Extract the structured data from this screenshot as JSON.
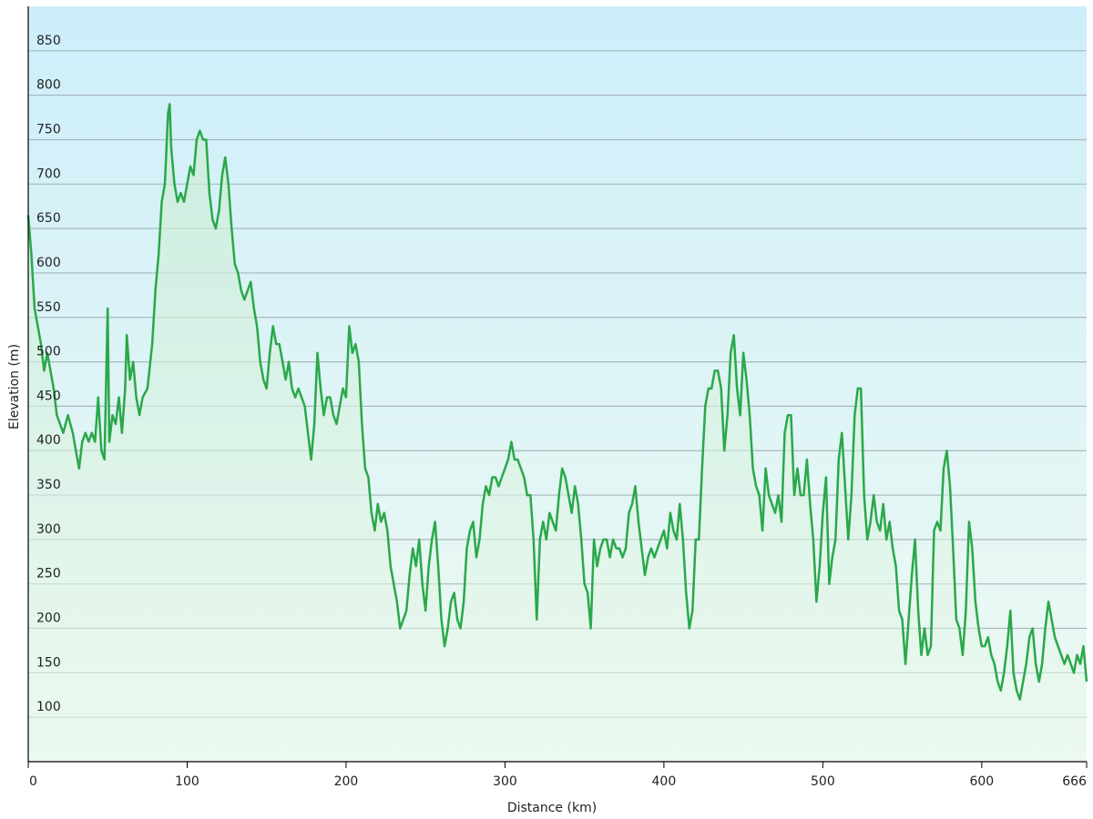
{
  "chart_data": {
    "type": "area-line",
    "x_label": "Distance  (km)",
    "y_label": "Elevation (m)",
    "color": "#2aa84a",
    "grid": true,
    "xlim": [
      0,
      666
    ],
    "ylim": [
      50,
      900
    ],
    "xticks": [
      0,
      100,
      200,
      300,
      400,
      500,
      600,
      666
    ],
    "yticks": [
      100,
      150,
      200,
      250,
      300,
      350,
      400,
      450,
      500,
      550,
      600,
      650,
      700,
      750,
      800,
      850
    ],
    "x": [
      0,
      2,
      4,
      6,
      8,
      10,
      12,
      14,
      16,
      18,
      20,
      22,
      25,
      28,
      30,
      32,
      34,
      36,
      38,
      40,
      42,
      44,
      46,
      48,
      50,
      51,
      53,
      55,
      57,
      59,
      61,
      62,
      64,
      66,
      68,
      70,
      72,
      75,
      78,
      80,
      82,
      84,
      86,
      88,
      89,
      90,
      92,
      94,
      96,
      98,
      100,
      102,
      104,
      106,
      108,
      110,
      112,
      114,
      116,
      118,
      120,
      122,
      124,
      126,
      128,
      130,
      132,
      134,
      136,
      138,
      140,
      142,
      144,
      146,
      148,
      150,
      152,
      154,
      156,
      158,
      160,
      162,
      164,
      166,
      168,
      170,
      172,
      174,
      176,
      178,
      180,
      182,
      184,
      186,
      188,
      190,
      192,
      194,
      196,
      198,
      200,
      202,
      204,
      206,
      208,
      210,
      212,
      214,
      216,
      218,
      220,
      222,
      224,
      226,
      228,
      230,
      232,
      234,
      236,
      238,
      240,
      242,
      244,
      246,
      248,
      250,
      252,
      254,
      256,
      258,
      260,
      262,
      264,
      266,
      268,
      270,
      272,
      274,
      276,
      278,
      280,
      282,
      284,
      286,
      288,
      290,
      292,
      294,
      296,
      298,
      300,
      302,
      304,
      306,
      308,
      310,
      312,
      314,
      316,
      318,
      320,
      322,
      324,
      326,
      328,
      330,
      332,
      334,
      336,
      338,
      340,
      342,
      344,
      346,
      348,
      350,
      352,
      354,
      356,
      358,
      360,
      362,
      364,
      366,
      368,
      370,
      372,
      374,
      376,
      378,
      380,
      382,
      384,
      386,
      388,
      390,
      392,
      394,
      396,
      398,
      400,
      402,
      404,
      406,
      408,
      410,
      412,
      414,
      416,
      418,
      420,
      422,
      424,
      426,
      428,
      430,
      432,
      434,
      436,
      438,
      440,
      442,
      444,
      446,
      448,
      450,
      452,
      454,
      456,
      458,
      460,
      462,
      464,
      466,
      468,
      470,
      472,
      474,
      476,
      478,
      480,
      482,
      484,
      486,
      488,
      490,
      492,
      494,
      496,
      498,
      500,
      502,
      504,
      506,
      508,
      510,
      512,
      514,
      516,
      518,
      520,
      522,
      524,
      526,
      528,
      530,
      532,
      534,
      536,
      538,
      540,
      542,
      544,
      546,
      548,
      550,
      552,
      554,
      556,
      558,
      560,
      562,
      564,
      566,
      568,
      570,
      572,
      574,
      576,
      578,
      580,
      582,
      584,
      586,
      588,
      590,
      592,
      594,
      596,
      598,
      600,
      602,
      604,
      606,
      608,
      610,
      612,
      614,
      616,
      618,
      620,
      622,
      624,
      626,
      628,
      630,
      632,
      634,
      636,
      638,
      640,
      642,
      644,
      646,
      648,
      650,
      652,
      654,
      656,
      658,
      660,
      662,
      664,
      666
    ],
    "values": [
      665,
      620,
      560,
      540,
      520,
      490,
      510,
      490,
      470,
      440,
      430,
      420,
      440,
      420,
      400,
      380,
      410,
      420,
      410,
      420,
      410,
      460,
      400,
      390,
      560,
      410,
      440,
      430,
      460,
      420,
      470,
      530,
      480,
      500,
      460,
      440,
      460,
      470,
      520,
      580,
      620,
      680,
      700,
      780,
      790,
      740,
      700,
      680,
      690,
      680,
      700,
      720,
      710,
      750,
      760,
      750,
      750,
      690,
      660,
      650,
      670,
      710,
      730,
      700,
      650,
      610,
      600,
      580,
      570,
      580,
      590,
      560,
      540,
      500,
      480,
      470,
      510,
      540,
      520,
      520,
      500,
      480,
      500,
      470,
      460,
      470,
      460,
      450,
      420,
      390,
      430,
      510,
      470,
      440,
      460,
      460,
      440,
      430,
      450,
      470,
      460,
      540,
      510,
      520,
      500,
      430,
      380,
      370,
      330,
      310,
      340,
      320,
      330,
      310,
      270,
      250,
      230,
      200,
      210,
      220,
      260,
      290,
      270,
      300,
      250,
      220,
      270,
      300,
      320,
      270,
      210,
      180,
      200,
      230,
      240,
      210,
      200,
      230,
      290,
      310,
      320,
      280,
      300,
      340,
      360,
      350,
      370,
      370,
      360,
      370,
      380,
      390,
      410,
      390,
      390,
      380,
      370,
      350,
      350,
      300,
      210,
      300,
      320,
      300,
      330,
      320,
      310,
      350,
      380,
      370,
      350,
      330,
      360,
      340,
      300,
      250,
      240,
      200,
      300,
      270,
      290,
      300,
      300,
      280,
      300,
      290,
      290,
      280,
      290,
      330,
      340,
      360,
      320,
      290,
      260,
      280,
      290,
      280,
      290,
      300,
      310,
      290,
      330,
      310,
      300,
      340,
      300,
      240,
      200,
      220,
      300,
      300,
      380,
      450,
      470,
      470,
      490,
      490,
      470,
      400,
      440,
      510,
      530,
      470,
      440,
      510,
      480,
      440,
      380,
      360,
      350,
      310,
      380,
      350,
      340,
      330,
      350,
      320,
      420,
      440,
      440,
      350,
      380,
      350,
      350,
      390,
      340,
      300,
      230,
      270,
      330,
      370,
      250,
      280,
      300,
      390,
      420,
      360,
      300,
      350,
      440,
      470,
      470,
      350,
      300,
      320,
      350,
      320,
      310,
      340,
      300,
      320,
      290,
      270,
      220,
      210,
      160,
      210,
      260,
      300,
      220,
      170,
      200,
      170,
      180,
      310,
      320,
      310,
      380,
      400,
      360,
      290,
      210,
      200,
      170,
      220,
      320,
      290,
      230,
      200,
      180,
      180,
      190,
      170,
      160,
      140,
      130,
      150,
      180,
      220,
      150,
      130,
      120,
      140,
      160,
      190,
      200,
      160,
      140,
      160,
      200,
      230,
      210,
      190,
      180,
      170,
      160,
      170,
      160,
      150,
      170,
      160,
      180,
      140
    ]
  }
}
